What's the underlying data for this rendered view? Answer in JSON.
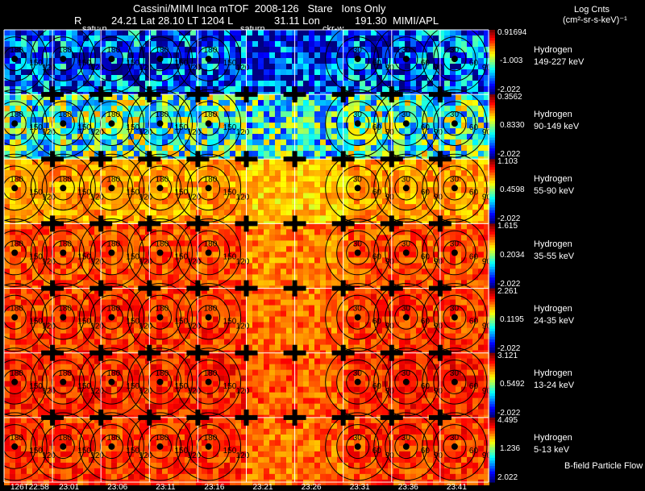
{
  "header": {
    "line1": "Cassini/MIMI Inca mTOF  2008-126   Stare   Ions Only",
    "r_label": "R",
    "lat_label": "24.21 Lat 28.10 LT 1204 L",
    "lon_label": "31.11 Lon",
    "lon_value": "191.30  MIMI/APL",
    "marker_saturn_1": "saturn",
    "marker_saturn_2": "saturn",
    "marker_ckr": "ckr-w",
    "cbar_title": "Log Cnts",
    "cbar_units": "(cm²-sr-s-keV)⁻¹"
  },
  "footer": {
    "flow_label": "B-field Particle Flow"
  },
  "chart_data": {
    "type": "heatmap",
    "x_ticks": [
      "126T22:58",
      "23:01",
      "23:06",
      "23:11",
      "23:16",
      "23:21",
      "23:26",
      "23:31",
      "23:36",
      "23:41"
    ],
    "rows": [
      {
        "species": "Hydrogen",
        "range": "149-227 keV",
        "cbar_max": "0.91694",
        "cbar_mid": "-1.003",
        "cbar_min": "-2.022",
        "level": 0.2
      },
      {
        "species": "Hydrogen",
        "range": "90-149 keV",
        "cbar_max": "0.3562",
        "cbar_mid": "0.8330",
        "cbar_min": "-2.022",
        "level": 0.45
      },
      {
        "species": "Hydrogen",
        "range": "55-90 keV",
        "cbar_max": "1.103",
        "cbar_mid": "0.4598",
        "cbar_min": "-2.022",
        "level": 0.72
      },
      {
        "species": "Hydrogen",
        "range": "35-55 keV",
        "cbar_max": "1.615",
        "cbar_mid": "0.2034",
        "cbar_min": "-2.022",
        "level": 0.8
      },
      {
        "species": "Hydrogen",
        "range": "24-35 keV",
        "cbar_max": "2.261",
        "cbar_mid": "0.1195",
        "cbar_min": "-2.022",
        "level": 0.82
      },
      {
        "species": "Hydrogen",
        "range": "13-24 keV",
        "cbar_max": "3.121",
        "cbar_mid": "0.5492",
        "cbar_min": "-2.022",
        "level": 0.84
      },
      {
        "species": "Hydrogen",
        "range": "5-13 keV",
        "cbar_max": "4.495",
        "cbar_mid": "1.236",
        "cbar_min": "2.022",
        "level": 0.82
      }
    ],
    "contour_labels": [
      "150",
      "120",
      "180",
      "90",
      "60",
      "30"
    ]
  }
}
